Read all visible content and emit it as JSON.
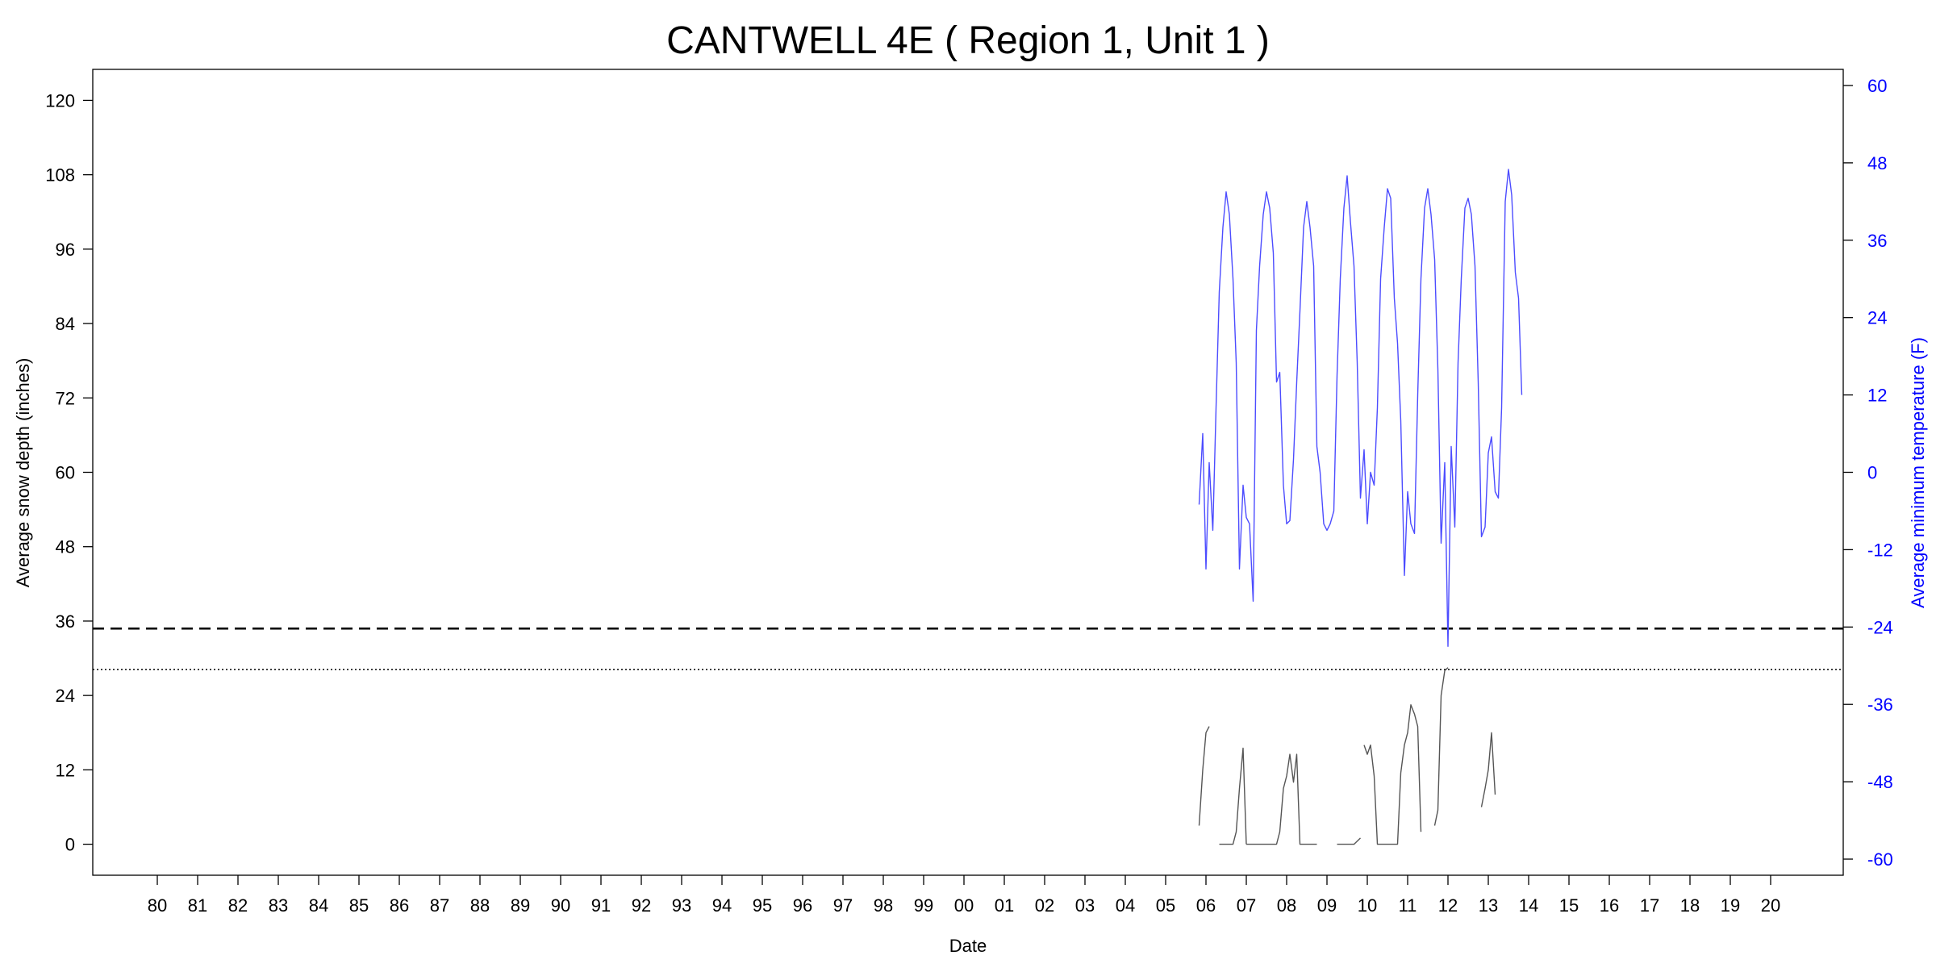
{
  "chart_data": {
    "type": "line",
    "title": "CANTWELL 4E ( Region 1, Unit 1 )",
    "xlabel": "Date",
    "ylabel": "Average snow depth (inches)",
    "y2label": "Average minimum temperature (F)",
    "x_ticks": [
      "80",
      "81",
      "82",
      "83",
      "84",
      "85",
      "86",
      "87",
      "88",
      "89",
      "90",
      "91",
      "92",
      "93",
      "94",
      "95",
      "96",
      "97",
      "98",
      "99",
      "00",
      "01",
      "02",
      "03",
      "04",
      "05",
      "06",
      "07",
      "08",
      "09",
      "10",
      "11",
      "12",
      "13",
      "14",
      "15",
      "16",
      "17",
      "18",
      "19",
      "20"
    ],
    "x_tick_values": [
      1980,
      1981,
      1982,
      1983,
      1984,
      1985,
      1986,
      1987,
      1988,
      1989,
      1990,
      1991,
      1992,
      1993,
      1994,
      1995,
      1996,
      1997,
      1998,
      1999,
      2000,
      2001,
      2002,
      2003,
      2004,
      2005,
      2006,
      2007,
      2008,
      2009,
      2010,
      2011,
      2012,
      2013,
      2014,
      2015,
      2016,
      2017,
      2018,
      2019,
      2020
    ],
    "xlim": [
      1978.4,
      2021.8
    ],
    "ylim": [
      -5,
      125
    ],
    "y_ticks": [
      0,
      12,
      24,
      36,
      48,
      60,
      72,
      84,
      96,
      108,
      120
    ],
    "y2lim": [
      -62.5,
      62.5
    ],
    "y2_ticks": [
      -60,
      -48,
      -36,
      -24,
      -12,
      0,
      12,
      24,
      36,
      48,
      60
    ],
    "colors": {
      "snow": "#555555",
      "temperature": "#4c4cff",
      "axis": "#000000",
      "right_axis_text": "#0000ff"
    },
    "reference_lines": [
      {
        "axis": "y",
        "value": 34.8,
        "style": "dashed"
      },
      {
        "axis": "y",
        "value": 28.2,
        "style": "dotted"
      }
    ],
    "series": [
      {
        "axis": "left",
        "segments": [
          [
            [
              2005.83,
              3
            ],
            [
              2005.92,
              12
            ],
            [
              2006.0,
              18
            ],
            [
              2006.08,
              19
            ]
          ],
          [
            [
              2006.33,
              0
            ],
            [
              2006.5,
              0
            ],
            [
              2006.67,
              0
            ],
            [
              2006.75,
              2
            ],
            [
              2006.83,
              9
            ],
            [
              2006.92,
              15.5
            ],
            [
              2007.0,
              0
            ]
          ],
          [
            [
              2007.0,
              0
            ],
            [
              2007.25,
              0
            ],
            [
              2007.5,
              0
            ],
            [
              2007.75,
              0
            ],
            [
              2007.83,
              2
            ],
            [
              2007.92,
              9
            ],
            [
              2008.0,
              11
            ],
            [
              2008.08,
              14.5
            ],
            [
              2008.17,
              10
            ],
            [
              2008.25,
              14.5
            ],
            [
              2008.33,
              0
            ],
            [
              2008.5,
              0
            ],
            [
              2008.75,
              0
            ]
          ],
          [
            [
              2009.25,
              0
            ],
            [
              2009.5,
              0
            ],
            [
              2009.67,
              0
            ],
            [
              2009.83,
              1
            ]
          ],
          [
            [
              2009.92,
              16
            ],
            [
              2010.0,
              14.5
            ],
            [
              2010.08,
              16
            ],
            [
              2010.17,
              11
            ],
            [
              2010.25,
              0
            ],
            [
              2010.5,
              0
            ],
            [
              2010.75,
              0
            ],
            [
              2010.83,
              11.5
            ],
            [
              2010.92,
              16
            ],
            [
              2011.0,
              18
            ],
            [
              2011.08,
              22.5
            ],
            [
              2011.17,
              21
            ],
            [
              2011.25,
              19
            ],
            [
              2011.33,
              2
            ]
          ],
          [
            [
              2011.67,
              3
            ],
            [
              2011.75,
              5.5
            ],
            [
              2011.83,
              24
            ],
            [
              2011.92,
              28
            ],
            [
              2012.0,
              28.5
            ]
          ],
          [
            [
              2012.83,
              6
            ],
            [
              2012.92,
              9
            ],
            [
              2013.0,
              12
            ],
            [
              2013.08,
              18
            ],
            [
              2013.17,
              8
            ]
          ]
        ]
      },
      {
        "axis": "right",
        "segments": [
          [
            [
              2005.83,
              -5
            ],
            [
              2005.92,
              6
            ],
            [
              2006.0,
              -15
            ],
            [
              2006.08,
              1.5
            ],
            [
              2006.17,
              -9
            ],
            [
              2006.25,
              10
            ],
            [
              2006.33,
              28
            ],
            [
              2006.42,
              38
            ],
            [
              2006.5,
              43.5
            ],
            [
              2006.58,
              40
            ],
            [
              2006.67,
              30
            ],
            [
              2006.75,
              17
            ],
            [
              2006.83,
              -15
            ],
            [
              2006.92,
              -2
            ],
            [
              2007.0,
              -7
            ],
            [
              2007.08,
              -8
            ],
            [
              2007.17,
              -20
            ],
            [
              2007.25,
              22
            ],
            [
              2007.33,
              32
            ],
            [
              2007.42,
              40
            ],
            [
              2007.5,
              43.5
            ],
            [
              2007.58,
              41
            ],
            [
              2007.67,
              34
            ],
            [
              2007.75,
              14
            ],
            [
              2007.83,
              15.5
            ],
            [
              2007.92,
              -2
            ],
            [
              2008.0,
              -8
            ],
            [
              2008.08,
              -7.5
            ],
            [
              2008.17,
              2
            ],
            [
              2008.25,
              14
            ],
            [
              2008.33,
              25
            ],
            [
              2008.42,
              38
            ],
            [
              2008.5,
              42
            ],
            [
              2008.58,
              38
            ],
            [
              2008.67,
              32
            ],
            [
              2008.75,
              4
            ],
            [
              2008.83,
              0
            ],
            [
              2008.92,
              -8
            ],
            [
              2009.0,
              -9
            ],
            [
              2009.08,
              -8
            ],
            [
              2009.17,
              -6
            ],
            [
              2009.25,
              15
            ],
            [
              2009.33,
              30
            ],
            [
              2009.42,
              41
            ],
            [
              2009.5,
              46
            ],
            [
              2009.58,
              39
            ],
            [
              2009.67,
              32
            ],
            [
              2009.75,
              17
            ],
            [
              2009.83,
              -4
            ],
            [
              2009.92,
              3.5
            ],
            [
              2010.0,
              -8
            ],
            [
              2010.08,
              0
            ],
            [
              2010.17,
              -2
            ],
            [
              2010.25,
              10
            ],
            [
              2010.33,
              30
            ],
            [
              2010.42,
              38
            ],
            [
              2010.5,
              44
            ],
            [
              2010.58,
              42.5
            ],
            [
              2010.67,
              27
            ],
            [
              2010.75,
              20
            ],
            [
              2010.83,
              8
            ],
            [
              2010.92,
              -16
            ],
            [
              2011.0,
              -3
            ],
            [
              2011.08,
              -8
            ],
            [
              2011.17,
              -9.5
            ],
            [
              2011.25,
              12
            ],
            [
              2011.33,
              30
            ],
            [
              2011.42,
              41
            ],
            [
              2011.5,
              44
            ],
            [
              2011.58,
              40
            ],
            [
              2011.67,
              33
            ],
            [
              2011.75,
              16
            ],
            [
              2011.83,
              -11
            ],
            [
              2011.92,
              1.5
            ],
            [
              2012.0,
              -27
            ],
            [
              2012.08,
              4
            ],
            [
              2012.17,
              -8.5
            ],
            [
              2012.25,
              17
            ],
            [
              2012.33,
              30
            ],
            [
              2012.42,
              41
            ],
            [
              2012.5,
              42.5
            ],
            [
              2012.58,
              40
            ],
            [
              2012.67,
              32
            ],
            [
              2012.75,
              14
            ],
            [
              2012.83,
              -10
            ],
            [
              2012.92,
              -8.5
            ],
            [
              2013.0,
              3
            ],
            [
              2013.08,
              5.5
            ],
            [
              2013.17,
              -3
            ],
            [
              2013.25,
              -4
            ],
            [
              2013.33,
              10
            ],
            [
              2013.42,
              42
            ],
            [
              2013.5,
              47
            ],
            [
              2013.58,
              43
            ],
            [
              2013.67,
              31
            ],
            [
              2013.75,
              27
            ],
            [
              2013.83,
              12
            ]
          ]
        ]
      }
    ]
  }
}
